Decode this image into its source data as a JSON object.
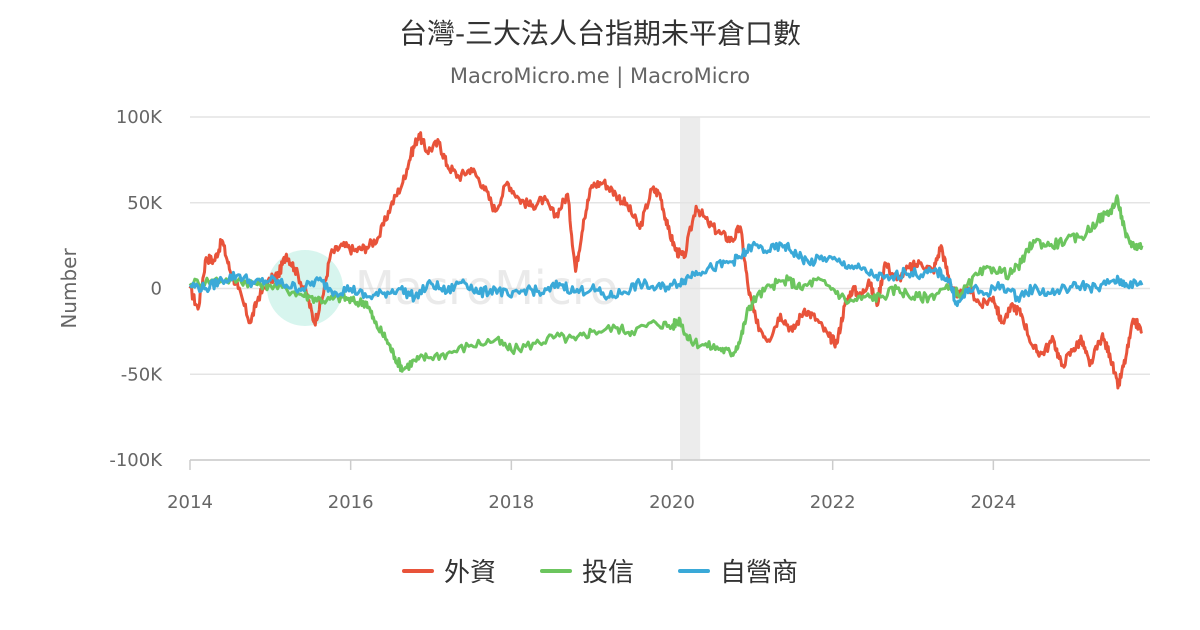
{
  "header": {
    "title": "台灣-三大法人台指期未平倉口數",
    "subtitle": "MacroMicro.me | MacroMicro"
  },
  "watermark": "MacroMicro",
  "legend_items": [
    {
      "label": "外資",
      "color": "#e8533a"
    },
    {
      "label": "投信",
      "color": "#6cc55e"
    },
    {
      "label": "自營商",
      "color": "#3aa9d8"
    }
  ],
  "chart_data": {
    "type": "line",
    "title": "台灣-三大法人台指期未平倉口數",
    "subtitle": "MacroMicro.me | MacroMicro",
    "ylabel": "Number",
    "xlabel": "",
    "xlim": [
      2014,
      2025.95
    ],
    "ylim": [
      -100000,
      100000
    ],
    "x_ticks": [
      2014,
      2016,
      2018,
      2020,
      2022,
      2024
    ],
    "x_tick_labels": [
      "2014",
      "2016",
      "2018",
      "2020",
      "2022",
      "2024"
    ],
    "y_ticks": [
      100000,
      50000,
      0,
      -50000,
      -100000
    ],
    "y_tick_labels": [
      "100K",
      "50K",
      "0",
      "-50K",
      "-100K"
    ],
    "grid": "horizontal",
    "legend_position": "bottom",
    "shaded_regions": [
      [
        2020.1,
        2020.35
      ]
    ],
    "series": [
      {
        "name": "外資",
        "color": "#e8533a",
        "points": [
          [
            2014.0,
            0
          ],
          [
            2014.1,
            -12000
          ],
          [
            2014.2,
            18000
          ],
          [
            2014.3,
            16000
          ],
          [
            2014.4,
            28000
          ],
          [
            2014.5,
            10000
          ],
          [
            2014.6,
            0
          ],
          [
            2014.75,
            -20000
          ],
          [
            2014.85,
            -5000
          ],
          [
            2015.0,
            5000
          ],
          [
            2015.1,
            8000
          ],
          [
            2015.2,
            20000
          ],
          [
            2015.3,
            12000
          ],
          [
            2015.45,
            -3000
          ],
          [
            2015.55,
            -20000
          ],
          [
            2015.65,
            -5000
          ],
          [
            2015.75,
            20000
          ],
          [
            2015.9,
            25000
          ],
          [
            2016.05,
            22000
          ],
          [
            2016.2,
            24000
          ],
          [
            2016.35,
            30000
          ],
          [
            2016.5,
            48000
          ],
          [
            2016.65,
            62000
          ],
          [
            2016.75,
            78000
          ],
          [
            2016.85,
            90000
          ],
          [
            2016.95,
            80000
          ],
          [
            2017.1,
            85000
          ],
          [
            2017.2,
            72000
          ],
          [
            2017.35,
            65000
          ],
          [
            2017.5,
            70000
          ],
          [
            2017.65,
            60000
          ],
          [
            2017.8,
            45000
          ],
          [
            2017.95,
            62000
          ],
          [
            2018.1,
            52000
          ],
          [
            2018.25,
            48000
          ],
          [
            2018.4,
            52000
          ],
          [
            2018.55,
            42000
          ],
          [
            2018.7,
            55000
          ],
          [
            2018.8,
            10000
          ],
          [
            2018.9,
            40000
          ],
          [
            2019.0,
            60000
          ],
          [
            2019.15,
            62000
          ],
          [
            2019.3,
            55000
          ],
          [
            2019.45,
            48000
          ],
          [
            2019.6,
            35000
          ],
          [
            2019.75,
            58000
          ],
          [
            2019.85,
            55000
          ],
          [
            2019.95,
            35000
          ],
          [
            2020.05,
            22000
          ],
          [
            2020.15,
            18000
          ],
          [
            2020.3,
            48000
          ],
          [
            2020.45,
            38000
          ],
          [
            2020.6,
            32000
          ],
          [
            2020.75,
            28000
          ],
          [
            2020.85,
            36000
          ],
          [
            2020.95,
            0
          ],
          [
            2021.05,
            -20000
          ],
          [
            2021.2,
            -30000
          ],
          [
            2021.35,
            -15000
          ],
          [
            2021.5,
            -25000
          ],
          [
            2021.65,
            -12000
          ],
          [
            2021.8,
            -18000
          ],
          [
            2021.95,
            -28000
          ],
          [
            2022.05,
            -32000
          ],
          [
            2022.15,
            -10000
          ],
          [
            2022.25,
            0
          ],
          [
            2022.35,
            -5000
          ],
          [
            2022.45,
            5000
          ],
          [
            2022.55,
            -10000
          ],
          [
            2022.65,
            15000
          ],
          [
            2022.8,
            5000
          ],
          [
            2022.95,
            12000
          ],
          [
            2023.1,
            15000
          ],
          [
            2023.25,
            10000
          ],
          [
            2023.35,
            25000
          ],
          [
            2023.45,
            5000
          ],
          [
            2023.55,
            -5000
          ],
          [
            2023.7,
            0
          ],
          [
            2023.85,
            -10000
          ],
          [
            2024.0,
            -5000
          ],
          [
            2024.1,
            -20000
          ],
          [
            2024.25,
            -10000
          ],
          [
            2024.35,
            -15000
          ],
          [
            2024.5,
            -35000
          ],
          [
            2024.6,
            -38000
          ],
          [
            2024.75,
            -30000
          ],
          [
            2024.85,
            -45000
          ],
          [
            2025.0,
            -35000
          ],
          [
            2025.1,
            -30000
          ],
          [
            2025.2,
            -45000
          ],
          [
            2025.35,
            -28000
          ],
          [
            2025.45,
            -38000
          ],
          [
            2025.55,
            -58000
          ],
          [
            2025.65,
            -40000
          ],
          [
            2025.75,
            -18000
          ],
          [
            2025.85,
            -25000
          ]
        ]
      },
      {
        "name": "投信",
        "color": "#6cc55e",
        "points": [
          [
            2014.0,
            3000
          ],
          [
            2014.3,
            5000
          ],
          [
            2014.6,
            5000
          ],
          [
            2014.8,
            3000
          ],
          [
            2015.0,
            2000
          ],
          [
            2015.3,
            -2000
          ],
          [
            2015.5,
            -5000
          ],
          [
            2015.7,
            -7000
          ],
          [
            2015.9,
            -5000
          ],
          [
            2016.05,
            -8000
          ],
          [
            2016.2,
            -8000
          ],
          [
            2016.3,
            -20000
          ],
          [
            2016.45,
            -30000
          ],
          [
            2016.55,
            -40000
          ],
          [
            2016.65,
            -47000
          ],
          [
            2016.8,
            -42000
          ],
          [
            2016.95,
            -40000
          ],
          [
            2017.2,
            -38000
          ],
          [
            2017.5,
            -33000
          ],
          [
            2017.8,
            -30000
          ],
          [
            2018.0,
            -36000
          ],
          [
            2018.3,
            -32000
          ],
          [
            2018.55,
            -28000
          ],
          [
            2018.8,
            -30000
          ],
          [
            2019.0,
            -25000
          ],
          [
            2019.3,
            -23000
          ],
          [
            2019.5,
            -25000
          ],
          [
            2019.8,
            -20000
          ],
          [
            2020.0,
            -22000
          ],
          [
            2020.1,
            -18000
          ],
          [
            2020.2,
            -30000
          ],
          [
            2020.4,
            -33000
          ],
          [
            2020.6,
            -35000
          ],
          [
            2020.75,
            -38000
          ],
          [
            2020.85,
            -30000
          ],
          [
            2020.95,
            -12000
          ],
          [
            2021.05,
            -5000
          ],
          [
            2021.25,
            2000
          ],
          [
            2021.45,
            5000
          ],
          [
            2021.6,
            0
          ],
          [
            2021.8,
            5000
          ],
          [
            2022.0,
            0
          ],
          [
            2022.2,
            -8000
          ],
          [
            2022.4,
            -5000
          ],
          [
            2022.6,
            -5000
          ],
          [
            2022.8,
            0
          ],
          [
            2023.0,
            -5000
          ],
          [
            2023.2,
            -5000
          ],
          [
            2023.4,
            0
          ],
          [
            2023.6,
            -3000
          ],
          [
            2023.8,
            8000
          ],
          [
            2024.0,
            12000
          ],
          [
            2024.2,
            8000
          ],
          [
            2024.35,
            15000
          ],
          [
            2024.5,
            28000
          ],
          [
            2024.7,
            25000
          ],
          [
            2024.9,
            28000
          ],
          [
            2025.1,
            30000
          ],
          [
            2025.3,
            40000
          ],
          [
            2025.45,
            45000
          ],
          [
            2025.55,
            52000
          ],
          [
            2025.65,
            30000
          ],
          [
            2025.75,
            25000
          ],
          [
            2025.85,
            25000
          ]
        ]
      },
      {
        "name": "自營商",
        "color": "#3aa9d8",
        "points": [
          [
            2014.0,
            2000
          ],
          [
            2014.2,
            0
          ],
          [
            2014.4,
            5000
          ],
          [
            2014.6,
            8000
          ],
          [
            2014.8,
            3000
          ],
          [
            2015.0,
            5000
          ],
          [
            2015.2,
            2000
          ],
          [
            2015.4,
            0
          ],
          [
            2015.6,
            5000
          ],
          [
            2015.8,
            -2000
          ],
          [
            2016.0,
            0
          ],
          [
            2016.2,
            -5000
          ],
          [
            2016.4,
            -3000
          ],
          [
            2016.6,
            0
          ],
          [
            2016.8,
            -5000
          ],
          [
            2017.0,
            3000
          ],
          [
            2017.2,
            -2000
          ],
          [
            2017.4,
            5000
          ],
          [
            2017.6,
            -3000
          ],
          [
            2017.8,
            0
          ],
          [
            2018.0,
            -5000
          ],
          [
            2018.2,
            0
          ],
          [
            2018.4,
            -3000
          ],
          [
            2018.6,
            3000
          ],
          [
            2018.8,
            -2000
          ],
          [
            2019.0,
            0
          ],
          [
            2019.2,
            -5000
          ],
          [
            2019.4,
            -2000
          ],
          [
            2019.6,
            3000
          ],
          [
            2019.8,
            0
          ],
          [
            2020.0,
            2000
          ],
          [
            2020.15,
            5000
          ],
          [
            2020.3,
            10000
          ],
          [
            2020.5,
            12000
          ],
          [
            2020.7,
            15000
          ],
          [
            2020.85,
            18000
          ],
          [
            2021.0,
            25000
          ],
          [
            2021.2,
            22000
          ],
          [
            2021.4,
            25000
          ],
          [
            2021.55,
            20000
          ],
          [
            2021.7,
            15000
          ],
          [
            2021.9,
            18000
          ],
          [
            2022.1,
            15000
          ],
          [
            2022.3,
            12000
          ],
          [
            2022.5,
            8000
          ],
          [
            2022.7,
            5000
          ],
          [
            2022.9,
            10000
          ],
          [
            2023.1,
            8000
          ],
          [
            2023.3,
            10000
          ],
          [
            2023.45,
            5000
          ],
          [
            2023.55,
            -10000
          ],
          [
            2023.7,
            0
          ],
          [
            2023.9,
            -3000
          ],
          [
            2024.1,
            2000
          ],
          [
            2024.3,
            -5000
          ],
          [
            2024.5,
            0
          ],
          [
            2024.7,
            -3000
          ],
          [
            2024.9,
            0
          ],
          [
            2025.1,
            2000
          ],
          [
            2025.3,
            0
          ],
          [
            2025.5,
            5000
          ],
          [
            2025.65,
            3000
          ],
          [
            2025.85,
            2000
          ]
        ]
      }
    ]
  }
}
